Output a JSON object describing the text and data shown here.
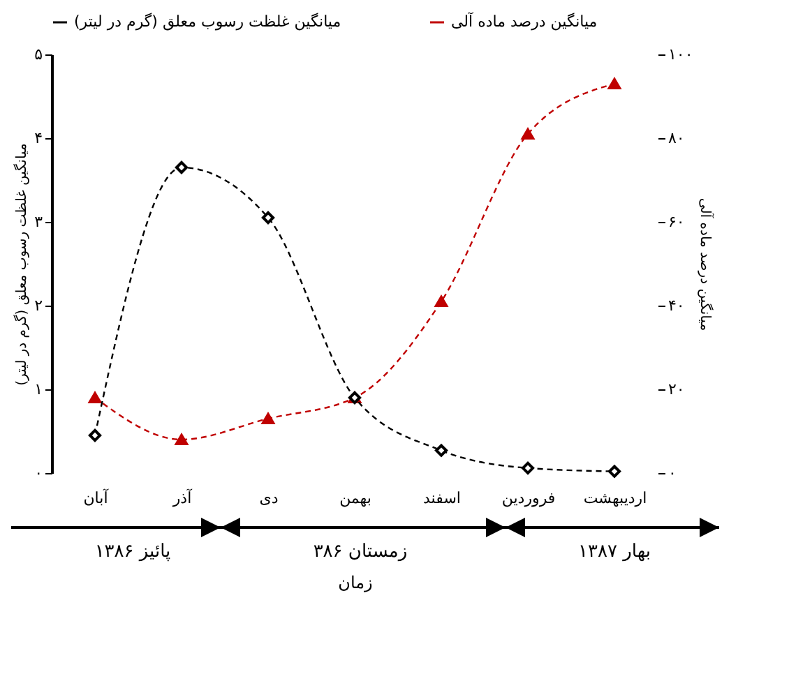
{
  "chart_data": {
    "type": "line",
    "categories": [
      "آبان",
      "آذر",
      "دی",
      "بهمن",
      "اسفند",
      "فروردین",
      "اردیبهشت"
    ],
    "series": [
      {
        "name": "میانگین غلظت رسوب معلق (گرم در لیتر)",
        "color": "#000000",
        "marker": "diamond",
        "values": [
          0.45,
          3.65,
          3.05,
          0.9,
          0.27,
          0.06,
          0.02
        ]
      },
      {
        "name": "میانگین درصد ماده آلی",
        "color": "#c00000",
        "marker": "triangle",
        "axis": "y2",
        "values": [
          18,
          8,
          13,
          18,
          41,
          81,
          93
        ]
      }
    ],
    "xlabel": "زمان",
    "ylabel": "میانگین غلظت رسوب معلق (گرم در لیتر)",
    "y2label": "میانگین درصد ماده آلی",
    "ylim": [
      0,
      5
    ],
    "yticks": [
      {
        "value": 0,
        "label": "۰"
      },
      {
        "value": 1,
        "label": "۱"
      },
      {
        "value": 2,
        "label": "۲"
      },
      {
        "value": 3,
        "label": "۳"
      },
      {
        "value": 4,
        "label": "۴"
      },
      {
        "value": 5,
        "label": "۵"
      }
    ],
    "y2lim": [
      0,
      100
    ],
    "y2ticks": [
      {
        "value": 0,
        "label": "۰"
      },
      {
        "value": 20,
        "label": "۲۰"
      },
      {
        "value": 40,
        "label": "۴۰"
      },
      {
        "value": 60,
        "label": "۶۰"
      },
      {
        "value": 80,
        "label": "۸۰"
      },
      {
        "value": 100,
        "label": "۱۰۰"
      }
    ],
    "annotations": [
      "پائیز ۱۳۸۶",
      "زمستان ۳۸۶",
      "بهار ۱۳۸۷"
    ],
    "legend": "top",
    "line_style": "dashed",
    "grid": false
  }
}
